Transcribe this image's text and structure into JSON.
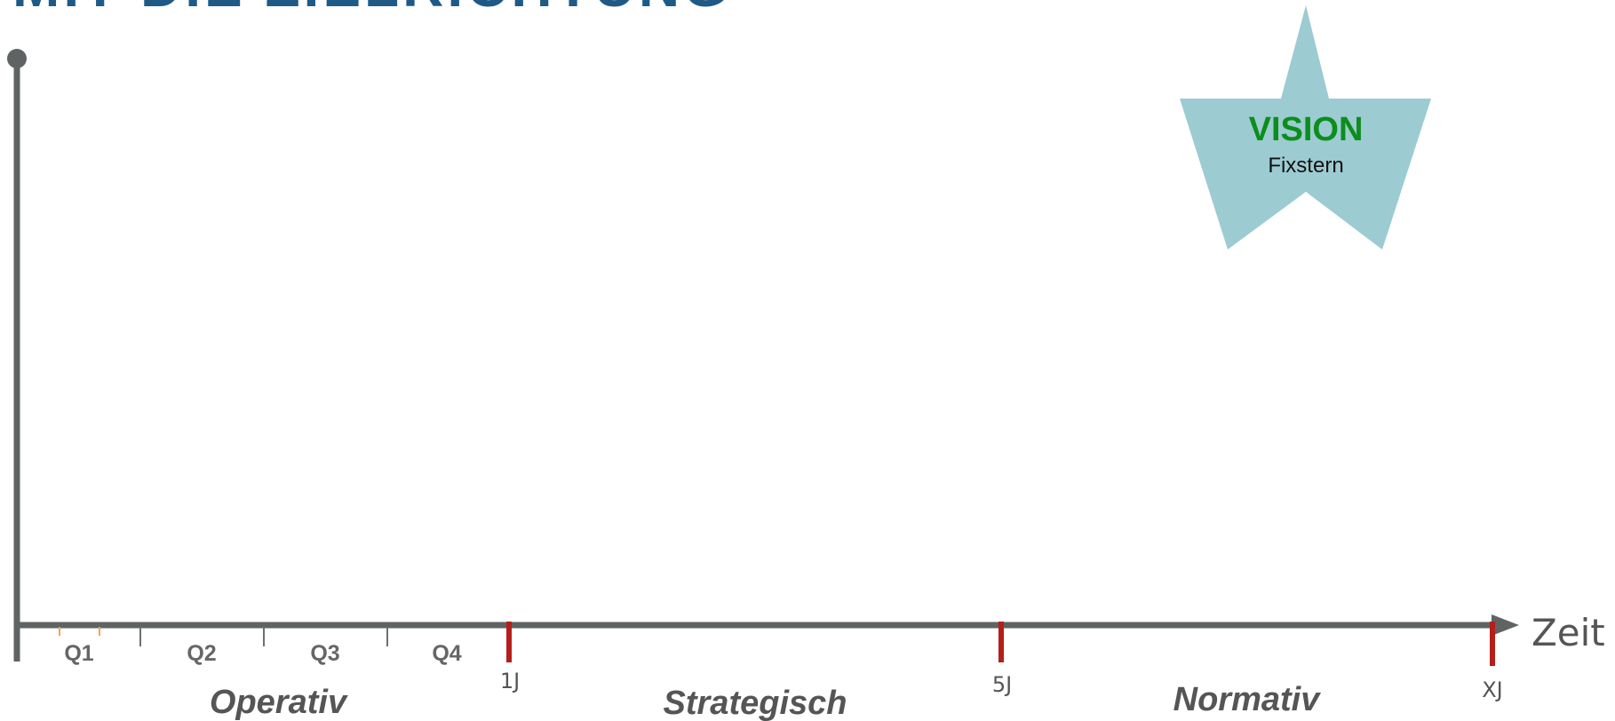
{
  "title": "MIT DIE ZIELRICHTUNG",
  "vision": {
    "title": "VISION",
    "subtitle": "Fixstern",
    "star_color": "#9ccbd2"
  },
  "axis": {
    "x_label": "Zeit",
    "axis_color": "#5f6363",
    "milestone_color": "#b51f1b"
  },
  "quarters": [
    "Q1",
    "Q2",
    "Q3",
    "Q4"
  ],
  "milestones": [
    "1J",
    "5J",
    "XJ"
  ],
  "phases": [
    "Operativ",
    "Strategisch",
    "Normativ"
  ]
}
